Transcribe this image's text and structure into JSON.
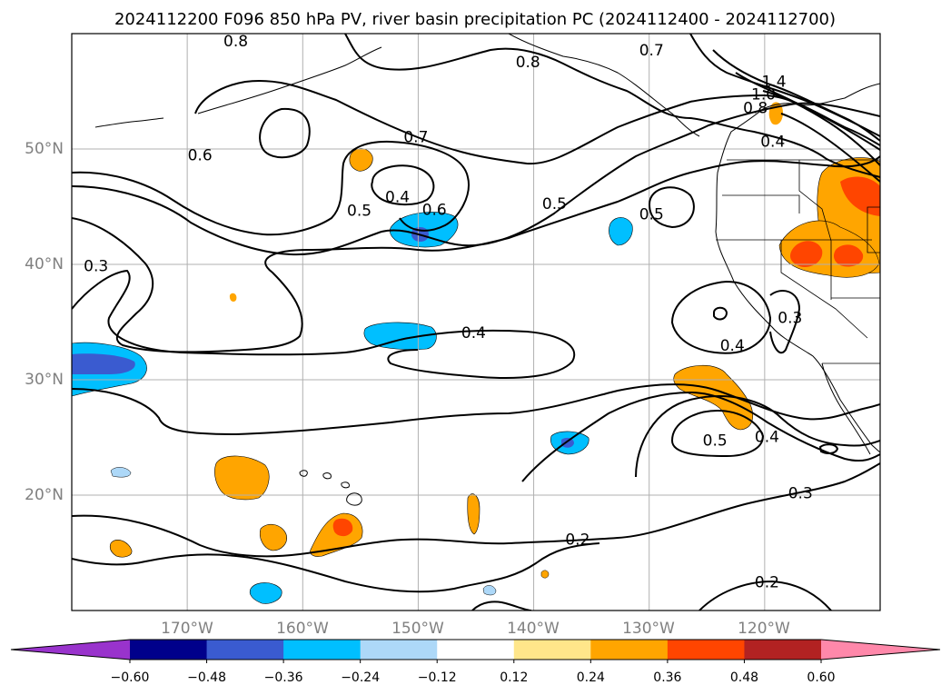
{
  "chart_data": {
    "type": "contour-map",
    "title": "2024112200 F096 850 hPa PV, river basin precipitation PC (2024112400 - 2024112700)",
    "projection": "PlateCarree",
    "lon_range": [
      -180,
      -110
    ],
    "lat_range": [
      10,
      60
    ],
    "grid": true,
    "lon_ticks": [
      {
        "value": -170,
        "label": "170°W"
      },
      {
        "value": -160,
        "label": "160°W"
      },
      {
        "value": -150,
        "label": "150°W"
      },
      {
        "value": -140,
        "label": "140°W"
      },
      {
        "value": -130,
        "label": "130°W"
      },
      {
        "value": -120,
        "label": "120°W"
      }
    ],
    "lat_ticks": [
      {
        "value": 20,
        "label": "20°N"
      },
      {
        "value": 30,
        "label": "30°N"
      },
      {
        "value": 40,
        "label": "40°N"
      },
      {
        "value": 50,
        "label": "50°N"
      }
    ],
    "colorbar": {
      "extend": "both",
      "levels": [
        -0.6,
        -0.48,
        -0.36,
        -0.24,
        -0.12,
        0.12,
        0.24,
        0.36,
        0.48,
        0.6
      ],
      "tick_labels": [
        "−0.60",
        "−0.48",
        "−0.36",
        "−0.24",
        "−0.12",
        "0.12",
        "0.24",
        "0.36",
        "0.48",
        "0.60"
      ],
      "colors": [
        "#9933cc",
        "#00008b",
        "#3a5bd0",
        "#00bfff",
        "#add8f8",
        "#ffffff",
        "#ffe68a",
        "#ffa500",
        "#ff4500",
        "#b22222",
        "#ff88aa"
      ]
    },
    "pv_contour_labels": [
      {
        "text": "0.8",
        "lon": -165.8,
        "lat": 59.3
      },
      {
        "text": "0.8",
        "lon": -140.5,
        "lat": 57.5
      },
      {
        "text": "0.7",
        "lon": -129.8,
        "lat": 58.5
      },
      {
        "text": "1.4",
        "lon": -119.2,
        "lat": 55.8
      },
      {
        "text": "1.0",
        "lon": -120.1,
        "lat": 54.7
      },
      {
        "text": "0.8",
        "lon": -120.8,
        "lat": 53.5
      },
      {
        "text": "0.4",
        "lon": -119.3,
        "lat": 50.6
      },
      {
        "text": "0.7",
        "lon": -150.2,
        "lat": 51.0
      },
      {
        "text": "0.6",
        "lon": -168.9,
        "lat": 49.4
      },
      {
        "text": "0.4",
        "lon": -151.8,
        "lat": 45.8
      },
      {
        "text": "0.5",
        "lon": -155.1,
        "lat": 44.6
      },
      {
        "text": "0.6",
        "lon": -148.6,
        "lat": 44.7
      },
      {
        "text": "0.5",
        "lon": -138.2,
        "lat": 45.2
      },
      {
        "text": "0.5",
        "lon": -129.8,
        "lat": 44.3
      },
      {
        "text": "0.3",
        "lon": -177.9,
        "lat": 39.8
      },
      {
        "text": "0.4",
        "lon": -145.2,
        "lat": 34.0
      },
      {
        "text": "0.3",
        "lon": -117.8,
        "lat": 35.3
      },
      {
        "text": "0.4",
        "lon": -122.8,
        "lat": 32.9
      },
      {
        "text": "0.5",
        "lon": -124.3,
        "lat": 24.7
      },
      {
        "text": "0.4",
        "lon": -119.8,
        "lat": 25.0
      },
      {
        "text": "0.3",
        "lon": -116.9,
        "lat": 20.1
      },
      {
        "text": "0.2",
        "lon": -136.2,
        "lat": 16.1
      },
      {
        "text": "0.2",
        "lon": -119.8,
        "lat": 12.4
      }
    ],
    "precip_pc_anomalies": [
      {
        "lon": -116.2,
        "lat": 47.5,
        "level": 0.36
      },
      {
        "lon": -117.9,
        "lat": 40.1,
        "level": 0.36
      },
      {
        "lon": -125.2,
        "lat": 28.8,
        "level": 0.24
      },
      {
        "lon": -161.2,
        "lat": 19.5,
        "level": 0.24
      },
      {
        "lon": -166.0,
        "lat": 21.6,
        "level": 0.24
      },
      {
        "lon": -162.0,
        "lat": 16.2,
        "level": 0.24
      },
      {
        "lon": -178.0,
        "lat": 15.5,
        "level": 0.24
      },
      {
        "lon": -145.0,
        "lat": 18.5,
        "level": 0.12
      },
      {
        "lon": -155.2,
        "lat": 47.9,
        "level": 0.24
      },
      {
        "lon": -120.7,
        "lat": 53.5,
        "level": 0.24
      },
      {
        "lon": -178.5,
        "lat": 30.8,
        "level": -0.48
      },
      {
        "lon": -150.1,
        "lat": 42.9,
        "level": -0.36
      },
      {
        "lon": -152.2,
        "lat": 34.1,
        "level": -0.24
      },
      {
        "lon": -136.9,
        "lat": 24.6,
        "level": -0.36
      },
      {
        "lon": -133.3,
        "lat": 42.9,
        "level": -0.24
      },
      {
        "lon": -163.4,
        "lat": 11.8,
        "level": -0.24
      },
      {
        "lon": -176.0,
        "lat": 22.0,
        "level": -0.12
      }
    ]
  }
}
